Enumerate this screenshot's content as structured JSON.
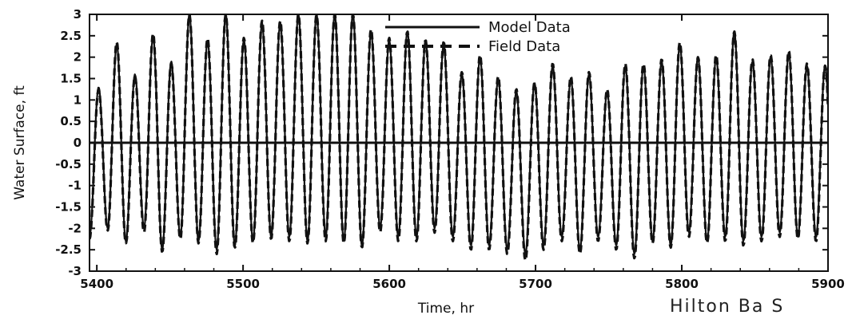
{
  "chart_data": {
    "type": "line",
    "title": "",
    "xlabel": "Time, hr",
    "ylabel": "Water Surface, ft",
    "xlim": [
      5395,
      5900
    ],
    "ylim": [
      -3,
      3
    ],
    "xticks": [
      5400,
      5500,
      5600,
      5700,
      5800,
      5900
    ],
    "yticks": [
      3,
      2.5,
      2,
      1.5,
      1,
      0.5,
      0,
      -0.5,
      -1,
      -1.5,
      -2,
      -2.5,
      -3
    ],
    "grid": false,
    "legend_position": "top-center",
    "zero_line": true,
    "period_hr": 12.42,
    "phase_start_hr": 5395,
    "series": [
      {
        "name": "Model Data",
        "style": "solid",
        "color": "#111111",
        "peaks": [
          1.3,
          2.3,
          1.6,
          2.5,
          1.9,
          3.0,
          2.4,
          3.0,
          2.4,
          2.8,
          2.8,
          3.0,
          3.0,
          3.0,
          3.0,
          2.6,
          2.4,
          2.6,
          2.4,
          2.3,
          1.6,
          2.0,
          1.5,
          1.2,
          1.4,
          1.8,
          1.5,
          1.6,
          1.2,
          1.8,
          1.8,
          1.9,
          2.3,
          2.0,
          2.0,
          2.6,
          1.9,
          2.0,
          2.1,
          1.8,
          1.8
        ],
        "troughs": [
          -2.2,
          -2.0,
          -2.3,
          -2.0,
          -2.5,
          -2.2,
          -2.3,
          -2.5,
          -2.4,
          -2.3,
          -2.2,
          -2.2,
          -2.3,
          -2.2,
          -2.3,
          -2.4,
          -2.0,
          -2.2,
          -2.2,
          -2.0,
          -2.2,
          -2.4,
          -2.4,
          -2.5,
          -2.6,
          -2.4,
          -2.2,
          -2.5,
          -2.2,
          -2.4,
          -2.6,
          -2.3,
          -2.4,
          -2.1,
          -2.3,
          -2.2,
          -2.3,
          -2.2,
          -2.1,
          -2.2,
          -2.2
        ]
      },
      {
        "name": "Field Data",
        "style": "dashed",
        "color": "#111111",
        "peaks": [
          1.25,
          2.35,
          1.55,
          2.55,
          1.85,
          3.0,
          2.45,
          3.0,
          2.45,
          2.85,
          2.85,
          3.0,
          3.0,
          3.0,
          3.0,
          2.65,
          2.45,
          2.6,
          2.4,
          2.35,
          1.65,
          2.05,
          1.55,
          1.25,
          1.4,
          1.85,
          1.55,
          1.65,
          1.25,
          1.85,
          1.85,
          1.95,
          2.35,
          2.0,
          2.05,
          2.6,
          1.95,
          2.05,
          2.15,
          1.85,
          1.8
        ],
        "troughs": [
          -2.25,
          -2.05,
          -2.35,
          -2.1,
          -2.55,
          -2.25,
          -2.35,
          -2.6,
          -2.45,
          -2.35,
          -2.25,
          -2.3,
          -2.35,
          -2.3,
          -2.35,
          -2.45,
          -2.1,
          -2.3,
          -2.3,
          -2.1,
          -2.3,
          -2.5,
          -2.5,
          -2.6,
          -2.75,
          -2.5,
          -2.3,
          -2.6,
          -2.3,
          -2.5,
          -2.7,
          -2.35,
          -2.45,
          -2.2,
          -2.35,
          -2.3,
          -2.4,
          -2.3,
          -2.2,
          -2.25,
          -2.3
        ]
      }
    ]
  },
  "footer": {
    "corner_text": "Hilton Ba S"
  }
}
